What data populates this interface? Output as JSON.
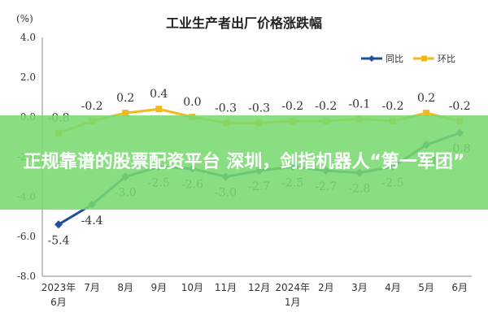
{
  "banner": {
    "text": "正规靠谱的股票配资平台 深圳，剑指机器人“第一军团”"
  },
  "colors": {
    "yoy": "#1f4e9a",
    "mom": "#f2b81d",
    "banner": "#78da70"
  },
  "chart_data": {
    "type": "line",
    "title": "工业生产者出厂价格涨跌幅",
    "unit": "(%)",
    "categories": [
      [
        "2023年",
        "6月"
      ],
      [
        "7月"
      ],
      [
        "8月"
      ],
      [
        "9月"
      ],
      [
        "10月"
      ],
      [
        "11月"
      ],
      [
        "12月"
      ],
      [
        "2024年",
        "1月"
      ],
      [
        "2月"
      ],
      [
        "3月"
      ],
      [
        "4月"
      ],
      [
        "5月"
      ],
      [
        "6月"
      ]
    ],
    "series": [
      {
        "name": "同比",
        "color": "#1f4e9a",
        "values": [
          -5.4,
          -4.4,
          -3.0,
          -2.5,
          -2.6,
          -3.0,
          -2.7,
          -2.5,
          -2.7,
          -2.8,
          -2.5,
          -1.4,
          -0.8
        ],
        "labels": [
          "-5.4",
          "-4.4",
          "-3.0",
          "-2.5",
          "-2.6",
          "-3.0",
          "-2.7",
          "-2.5",
          "-2.7",
          "-2.8",
          "-2.5",
          "-1.4",
          "-0.8"
        ]
      },
      {
        "name": "环比",
        "color": "#f2b81d",
        "values": [
          -0.8,
          -0.2,
          0.2,
          0.4,
          0.0,
          -0.3,
          -0.3,
          -0.2,
          -0.2,
          -0.1,
          -0.2,
          0.2,
          -0.2
        ],
        "labels": [
          "-0.8",
          "-0.2",
          "0.2",
          "0.4",
          "0.0",
          "-0.3",
          "-0.3",
          "-0.2",
          "-0.2",
          "-0.1",
          "-0.2",
          "0.2",
          "-0.2"
        ]
      }
    ],
    "yticks": [
      "4.0",
      "2.0",
      "0.0",
      "-2.0",
      "-4.0",
      "-6.0",
      "-8.0"
    ],
    "ylim": [
      -8,
      4
    ],
    "grid": false,
    "legend": "top-right"
  }
}
